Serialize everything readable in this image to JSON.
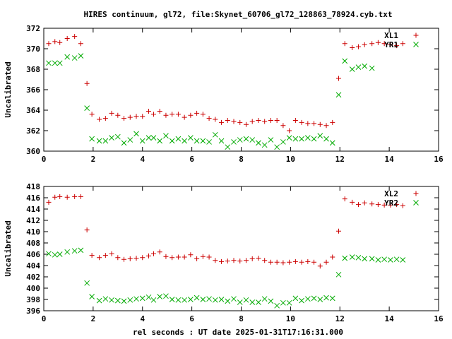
{
  "title": "HIRES continuum, gl72, file:Skynet_60706_gl72_128863_78924.cyb.txt",
  "xlabel": "rel seconds : UT date 2025-01-31T17:16:31.000",
  "colors": {
    "red": "#cc0000",
    "green": "#00aa00"
  },
  "chart_data": [
    {
      "type": "scatter",
      "ylabel": "Uncalibrated",
      "xlim": [
        0,
        16
      ],
      "ylim": [
        360,
        372
      ],
      "xticks": [
        0,
        2,
        4,
        6,
        8,
        10,
        12,
        14,
        16
      ],
      "yticks": [
        360,
        362,
        364,
        366,
        368,
        370,
        372
      ],
      "legend_position": "top-right",
      "series": [
        {
          "name": "XL1",
          "marker": "plus",
          "color": "#cc0000",
          "x": [
            0.2,
            0.45,
            0.65,
            0.95,
            1.25,
            1.5,
            1.75,
            1.95,
            2.25,
            2.5,
            2.75,
            3.0,
            3.25,
            3.5,
            3.75,
            4.0,
            4.25,
            4.45,
            4.7,
            4.95,
            5.2,
            5.45,
            5.7,
            5.95,
            6.2,
            6.45,
            6.7,
            6.95,
            7.2,
            7.45,
            7.7,
            7.95,
            8.2,
            8.45,
            8.7,
            8.95,
            9.2,
            9.45,
            9.7,
            9.95,
            10.2,
            10.45,
            10.7,
            10.95,
            11.2,
            11.45,
            11.7,
            11.95,
            12.2,
            12.5,
            12.75,
            13.0,
            13.3,
            13.55,
            13.8,
            14.05,
            14.3,
            14.55
          ],
          "y": [
            370.5,
            370.7,
            370.6,
            371.0,
            371.2,
            370.5,
            366.6,
            363.6,
            363.1,
            363.2,
            363.7,
            363.5,
            363.2,
            363.3,
            363.4,
            363.4,
            363.9,
            363.6,
            363.9,
            363.5,
            363.6,
            363.6,
            363.3,
            363.5,
            363.7,
            363.6,
            363.2,
            363.1,
            362.8,
            363.0,
            362.9,
            362.8,
            362.6,
            362.9,
            363.0,
            362.9,
            363.0,
            363.0,
            362.5,
            362.0,
            363.0,
            362.8,
            362.7,
            362.7,
            362.6,
            362.5,
            362.8,
            367.1,
            370.5,
            370.1,
            370.2,
            370.4,
            370.5,
            370.6,
            370.5,
            370.4,
            370.3,
            370.5
          ]
        },
        {
          "name": "YR1",
          "marker": "cross",
          "color": "#00aa00",
          "x": [
            0.2,
            0.45,
            0.65,
            0.95,
            1.25,
            1.5,
            1.75,
            1.95,
            2.25,
            2.5,
            2.75,
            3.0,
            3.25,
            3.5,
            3.75,
            4.0,
            4.25,
            4.45,
            4.7,
            4.95,
            5.2,
            5.45,
            5.7,
            5.95,
            6.2,
            6.45,
            6.7,
            6.95,
            7.2,
            7.45,
            7.7,
            7.95,
            8.2,
            8.45,
            8.7,
            8.95,
            9.2,
            9.45,
            9.7,
            9.95,
            10.2,
            10.45,
            10.7,
            10.95,
            11.2,
            11.45,
            11.7,
            11.95,
            12.2,
            12.5,
            12.75,
            13.0,
            13.3
          ],
          "y": [
            368.6,
            368.6,
            368.6,
            369.2,
            369.1,
            369.3,
            364.2,
            361.2,
            361.0,
            361.0,
            361.3,
            361.4,
            360.8,
            361.1,
            361.7,
            361.0,
            361.3,
            361.3,
            361.0,
            361.5,
            361.0,
            361.2,
            361.0,
            361.3,
            361.0,
            361.0,
            360.9,
            361.6,
            361.0,
            360.4,
            360.9,
            361.1,
            361.2,
            361.1,
            360.8,
            360.6,
            361.1,
            360.4,
            360.9,
            361.3,
            361.2,
            361.2,
            361.3,
            361.2,
            361.5,
            361.2,
            360.8,
            365.5,
            368.8,
            368.0,
            368.2,
            368.3,
            368.1
          ]
        }
      ]
    },
    {
      "type": "scatter",
      "ylabel": "Uncalibrated",
      "xlim": [
        0,
        16
      ],
      "ylim": [
        396,
        418
      ],
      "xticks": [
        0,
        2,
        4,
        6,
        8,
        10,
        12,
        14,
        16
      ],
      "yticks": [
        396,
        398,
        400,
        402,
        404,
        406,
        408,
        410,
        412,
        414,
        416,
        418
      ],
      "legend_position": "top-right",
      "series": [
        {
          "name": "XL2",
          "marker": "plus",
          "color": "#cc0000",
          "x": [
            0.2,
            0.45,
            0.65,
            0.95,
            1.25,
            1.5,
            1.75,
            1.95,
            2.25,
            2.5,
            2.75,
            3.0,
            3.25,
            3.5,
            3.75,
            4.0,
            4.25,
            4.45,
            4.7,
            4.95,
            5.2,
            5.45,
            5.7,
            5.95,
            6.2,
            6.45,
            6.7,
            6.95,
            7.2,
            7.45,
            7.7,
            7.95,
            8.2,
            8.45,
            8.7,
            8.95,
            9.2,
            9.45,
            9.7,
            9.95,
            10.2,
            10.45,
            10.7,
            10.95,
            11.2,
            11.45,
            11.7,
            11.95,
            12.2,
            12.5,
            12.75,
            13.0,
            13.3,
            13.55,
            13.8,
            14.05,
            14.3,
            14.55
          ],
          "y": [
            415.2,
            416.1,
            416.2,
            416.1,
            416.2,
            416.2,
            410.3,
            405.8,
            405.4,
            405.8,
            406.1,
            405.4,
            405.1,
            405.2,
            405.3,
            405.4,
            405.7,
            406.1,
            406.4,
            405.6,
            405.4,
            405.5,
            405.5,
            405.9,
            405.2,
            405.6,
            405.5,
            404.9,
            404.7,
            404.8,
            404.9,
            404.8,
            404.9,
            405.2,
            405.3,
            404.9,
            404.6,
            404.6,
            404.5,
            404.6,
            404.7,
            404.6,
            404.7,
            404.6,
            403.9,
            404.6,
            405.5,
            410.1,
            415.8,
            415.2,
            414.8,
            415.1,
            414.9,
            414.8,
            414.7,
            414.7,
            414.8,
            414.6
          ]
        },
        {
          "name": "YR2",
          "marker": "cross",
          "color": "#00aa00",
          "x": [
            0.2,
            0.45,
            0.65,
            0.95,
            1.25,
            1.5,
            1.75,
            1.95,
            2.25,
            2.5,
            2.75,
            3.0,
            3.25,
            3.5,
            3.75,
            4.0,
            4.25,
            4.45,
            4.7,
            4.95,
            5.2,
            5.45,
            5.7,
            5.95,
            6.2,
            6.45,
            6.7,
            6.95,
            7.2,
            7.45,
            7.7,
            7.95,
            8.2,
            8.45,
            8.7,
            8.95,
            9.2,
            9.45,
            9.7,
            9.95,
            10.2,
            10.45,
            10.7,
            10.95,
            11.2,
            11.45,
            11.7,
            11.95,
            12.2,
            12.5,
            12.75,
            13.0,
            13.3,
            13.55,
            13.8,
            14.05,
            14.3,
            14.55
          ],
          "y": [
            406.1,
            405.9,
            406.0,
            406.4,
            406.6,
            406.7,
            400.9,
            398.5,
            397.8,
            398.1,
            397.9,
            397.8,
            397.7,
            397.9,
            398.1,
            398.2,
            398.4,
            397.9,
            398.5,
            398.6,
            398.0,
            397.9,
            397.9,
            398.0,
            398.3,
            398.0,
            398.1,
            397.9,
            398.0,
            397.7,
            398.1,
            397.5,
            397.9,
            397.5,
            397.5,
            398.1,
            397.7,
            396.9,
            397.4,
            397.4,
            398.2,
            397.8,
            398.1,
            398.2,
            398.0,
            398.3,
            398.2,
            402.4,
            405.3,
            405.5,
            405.4,
            405.2,
            405.2,
            405.0,
            405.1,
            405.0,
            405.1,
            405.0
          ]
        }
      ]
    }
  ]
}
